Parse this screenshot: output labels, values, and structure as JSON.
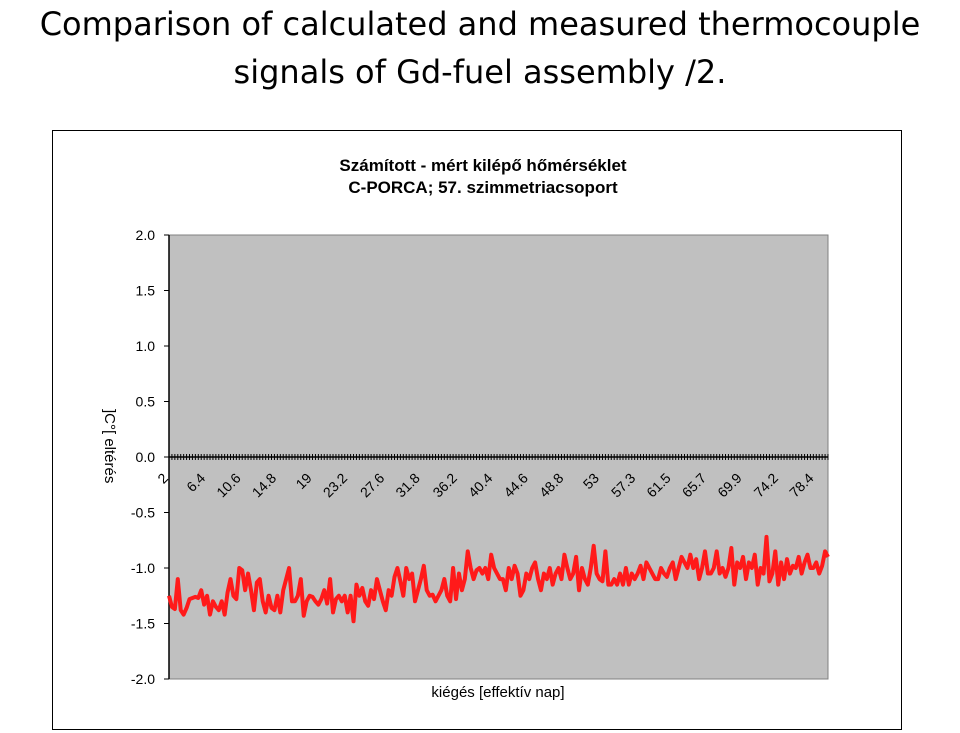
{
  "slide": {
    "title_line1": "Comparison of calculated and measured thermocouple",
    "title_line2": "signals of Gd-fuel assembly /2."
  },
  "chart_data": {
    "type": "line",
    "title": "Számított - mért kilépő hőmérséklet",
    "subtitle": "C-PORCA; 57. szimmetriacsoport",
    "xlabel": "kiégés [effektív nap]",
    "ylabel": "]C°[ eltérés",
    "ylim": [
      -2.0,
      2.0
    ],
    "yticks": [
      "2.0",
      "1.5",
      "1.0",
      "0.5",
      "0.0",
      "-0.5",
      "-1.0",
      "-1.5",
      "-2.0"
    ],
    "xlim": [
      2,
      80
    ],
    "xticks": [
      "2",
      "6.4",
      "10.6",
      "14.8",
      "19",
      "23.2",
      "27.6",
      "31.8",
      "36.2",
      "40.4",
      "44.6",
      "48.8",
      "53",
      "57.3",
      "61.5",
      "65.7",
      "69.9",
      "74.2",
      "78.4"
    ],
    "grid": "none",
    "legend": "none",
    "colors": {
      "series": "#ff1a1a",
      "plot_bg": "#c0c0c0",
      "axis": "#000000"
    },
    "series": [
      {
        "values": [
          -1.25,
          -1.35,
          -1.37,
          -1.1,
          -1.38,
          -1.42,
          -1.36,
          -1.28,
          -1.27,
          -1.26,
          -1.27,
          -1.2,
          -1.33,
          -1.25,
          -1.42,
          -1.3,
          -1.35,
          -1.38,
          -1.3,
          -1.42,
          -1.22,
          -1.1,
          -1.25,
          -1.28,
          -1.0,
          -1.02,
          -1.2,
          -1.05,
          -1.2,
          -1.38,
          -1.13,
          -1.1,
          -1.3,
          -1.4,
          -1.25,
          -1.36,
          -1.38,
          -1.25,
          -1.4,
          -1.2,
          -1.1,
          -1.0,
          -1.3,
          -1.3,
          -1.25,
          -1.1,
          -1.43,
          -1.3,
          -1.25,
          -1.26,
          -1.3,
          -1.33,
          -1.28,
          -1.2,
          -1.32,
          -1.1,
          -1.4,
          -1.28,
          -1.25,
          -1.3,
          -1.25,
          -1.4,
          -1.25,
          -1.48,
          -1.15,
          -1.25,
          -1.18,
          -1.3,
          -1.34,
          -1.2,
          -1.28,
          -1.1,
          -1.2,
          -1.3,
          -1.38,
          -1.2,
          -1.25,
          -1.08,
          -1.0,
          -1.12,
          -1.25,
          -1.0,
          -1.1,
          -1.05,
          -1.3,
          -1.2,
          -1.1,
          -0.98,
          -1.2,
          -1.25,
          -1.24,
          -1.3,
          -1.25,
          -1.2,
          -1.1,
          -1.25,
          -1.3,
          -1.0,
          -1.28,
          -1.05,
          -1.2,
          -1.1,
          -0.85,
          -1.0,
          -1.1,
          -1.02,
          -1.0,
          -1.05,
          -1.0,
          -1.1,
          -0.88,
          -1.0,
          -1.05,
          -1.1,
          -1.1,
          -1.2,
          -1.0,
          -1.1,
          -0.98,
          -1.05,
          -1.25,
          -1.2,
          -1.05,
          -1.1,
          -1.0,
          -0.95,
          -1.1,
          -1.2,
          -1.05,
          -1.1,
          -1.0,
          -1.15,
          -1.05,
          -1.0,
          -1.1,
          -0.88,
          -1.0,
          -1.1,
          -1.05,
          -0.9,
          -1.2,
          -1.0,
          -1.1,
          -1.15,
          -1.0,
          -0.8,
          -1.05,
          -1.1,
          -1.12,
          -0.85,
          -1.15,
          -1.15,
          -1.1,
          -1.15,
          -1.05,
          -1.15,
          -1.0,
          -1.15,
          -1.05,
          -1.1,
          -1.05,
          -0.98,
          -1.1,
          -0.95,
          -1.0,
          -1.05,
          -1.1,
          -1.1,
          -1.0,
          -1.05,
          -1.08,
          -1.0,
          -0.95,
          -1.1,
          -1.0,
          -0.9,
          -0.95,
          -1.0,
          -0.88,
          -1.0,
          -0.92,
          -1.1,
          -1.0,
          -0.85,
          -1.05,
          -1.05,
          -1.0,
          -0.85,
          -1.05,
          -1.0,
          -1.08,
          -1.0,
          -0.82,
          -1.15,
          -0.95,
          -1.0,
          -0.9,
          -1.1,
          -0.95,
          -1.0,
          -0.88,
          -1.15,
          -1.0,
          -1.05,
          -0.72,
          -1.12,
          -1.05,
          -0.85,
          -1.15,
          -0.95,
          -1.1,
          -0.92,
          -1.05,
          -0.98,
          -1.0,
          -0.9,
          -1.05,
          -0.95,
          -0.88,
          -1.0,
          -1.0,
          -0.95,
          -1.05,
          -0.98,
          -0.85,
          -0.9
        ]
      }
    ]
  }
}
